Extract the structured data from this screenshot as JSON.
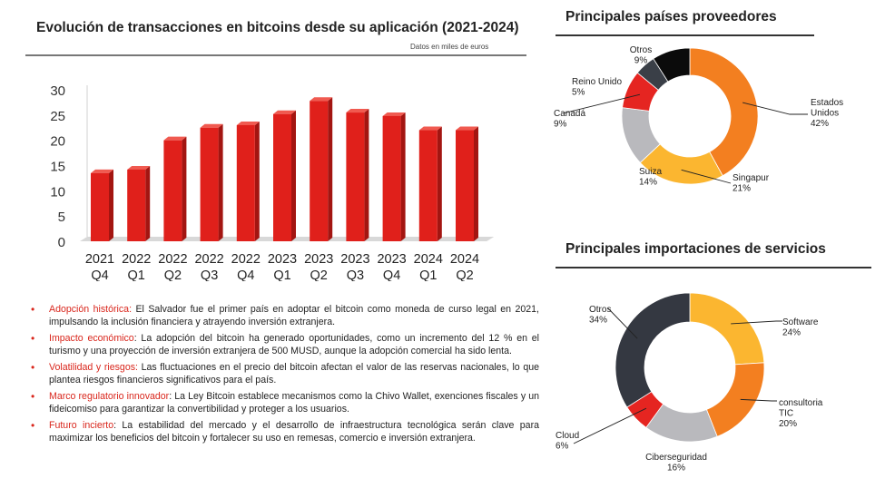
{
  "bar_panel": {
    "title": "Evolución de transacciones en bitcoins desde su aplicación (2021-2024)",
    "units_note": "Datos en miles de euros"
  },
  "suppliers_panel": {
    "title": "Principales países proveedores"
  },
  "services_panel": {
    "title": "Principales importaciones de servicios"
  },
  "bullets": [
    {
      "lead": "Adopción histórica:",
      "text": " El Salvador fue el primer país en adoptar el bitcoin como moneda de curso legal en 2021, impulsando la inclusión financiera y atrayendo inversión extranjera."
    },
    {
      "lead": "Impacto económico",
      "text": ": La adopción del bitcoin ha generado oportunidades, como un incremento del 12 % en el turismo y una proyección de inversión extranjera de 500 MUSD, aunque la adopción comercial ha sido lenta."
    },
    {
      "lead": "Volatilidad y riesgos:",
      "text": " Las fluctuaciones en el precio del bitcoin afectan el valor de las reservas nacionales, lo que plantea riesgos financieros significativos para el país."
    },
    {
      "lead": "Marco regulatorio innovador",
      "text": ": La Ley Bitcoin establece mecanismos como la Chivo Wallet, exenciones fiscales y un fideicomiso para garantizar la convertibilidad y proteger a los usuarios."
    },
    {
      "lead": "Futuro incierto",
      "text": ": La estabilidad del mercado y el desarrollo de infraestructura tecnológica serán clave para maximizar los beneficios del bitcoin y fortalecer su uso en remesas, comercio e inversión extranjera."
    }
  ],
  "chart_data": [
    {
      "type": "bar",
      "categories": [
        [
          "2021",
          "Q4"
        ],
        [
          "2022",
          "Q1"
        ],
        [
          "2022",
          "Q2"
        ],
        [
          "2022",
          "Q3"
        ],
        [
          "2022",
          "Q4"
        ],
        [
          "2023",
          "Q1"
        ],
        [
          "2023",
          "Q2"
        ],
        [
          "2023",
          "Q3"
        ],
        [
          "2023",
          "Q4"
        ],
        [
          "2024",
          "Q1"
        ],
        [
          "2024",
          "Q2"
        ]
      ],
      "values": [
        13.5,
        14.2,
        20,
        22.5,
        23,
        25.2,
        27.8,
        25.5,
        24.8,
        22,
        22
      ],
      "title": "Evolución de transacciones en bitcoins desde su aplicación (2021-2024)",
      "ylim": [
        0,
        30
      ],
      "yticks": [
        0,
        5,
        10,
        15,
        20,
        25,
        30
      ],
      "grid": false,
      "bar_color": "#e0201b"
    },
    {
      "type": "pie",
      "donut": true,
      "title": "Principales países proveedores",
      "slices": [
        {
          "label": [
            "Estados",
            "Unidos"
          ],
          "pct": "42%",
          "value": 42,
          "color": "#f37f20"
        },
        {
          "label": [
            "Singapur"
          ],
          "pct": "21%",
          "value": 21,
          "color": "#fbb630"
        },
        {
          "label": [
            "Suiza"
          ],
          "pct": "14%",
          "value": 14,
          "color": "#b9b9bd"
        },
        {
          "label": [
            "Canadá"
          ],
          "pct": "9%",
          "value": 9,
          "color": "#e52521"
        },
        {
          "label": [
            "Reino Unido"
          ],
          "pct": "5%",
          "value": 5,
          "color": "#3a3f47"
        },
        {
          "label": [
            "Otros"
          ],
          "pct": "9%",
          "value": 9,
          "color": "#0b0b0b"
        }
      ]
    },
    {
      "type": "pie",
      "donut": true,
      "title": "Principales importaciones de servicios",
      "slices": [
        {
          "label": [
            "Software"
          ],
          "pct": "24%",
          "value": 24,
          "color": "#fbb630"
        },
        {
          "label": [
            "consultoria",
            "TIC"
          ],
          "pct": "20%",
          "value": 20,
          "color": "#f37f20"
        },
        {
          "label": [
            "Ciberseguridad"
          ],
          "pct": "16%",
          "value": 16,
          "color": "#b9b9bd"
        },
        {
          "label": [
            "Cloud"
          ],
          "pct": "6%",
          "value": 6,
          "color": "#e52521"
        },
        {
          "label": [
            "Otros"
          ],
          "pct": "34%",
          "value": 34,
          "color": "#343841"
        }
      ]
    }
  ]
}
